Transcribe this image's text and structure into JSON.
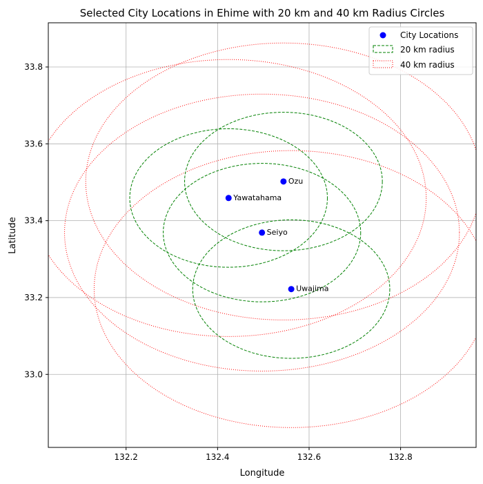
{
  "chart_data": {
    "type": "scatter",
    "title": "Selected City Locations in Ehime with 20 km and 40 km Radius Circles",
    "xlabel": "Longitude",
    "ylabel": "Latitude",
    "xlim": [
      132.03,
      132.965
    ],
    "ylim": [
      32.81,
      33.915
    ],
    "xticks": [
      "132.2",
      "132.4",
      "132.6",
      "132.8"
    ],
    "yticks": [
      "33.0",
      "33.2",
      "33.4",
      "33.6",
      "33.8"
    ],
    "grid": true,
    "legend_position": "top-right",
    "legend": {
      "points": "City Locations",
      "circle20": "20 km radius",
      "circle40": "40 km radius"
    },
    "radii_km": [
      20,
      40
    ],
    "colors": {
      "points": "#0000ff",
      "circle20": "#008000",
      "circle40": "#ff0000"
    },
    "cities": [
      {
        "name": "Ozu",
        "lon": 132.544,
        "lat": 33.502
      },
      {
        "name": "Yawatahama",
        "lon": 132.424,
        "lat": 33.459
      },
      {
        "name": "Seiyo",
        "lon": 132.497,
        "lat": 33.369
      },
      {
        "name": "Uwajima",
        "lon": 132.561,
        "lat": 33.222
      }
    ]
  }
}
